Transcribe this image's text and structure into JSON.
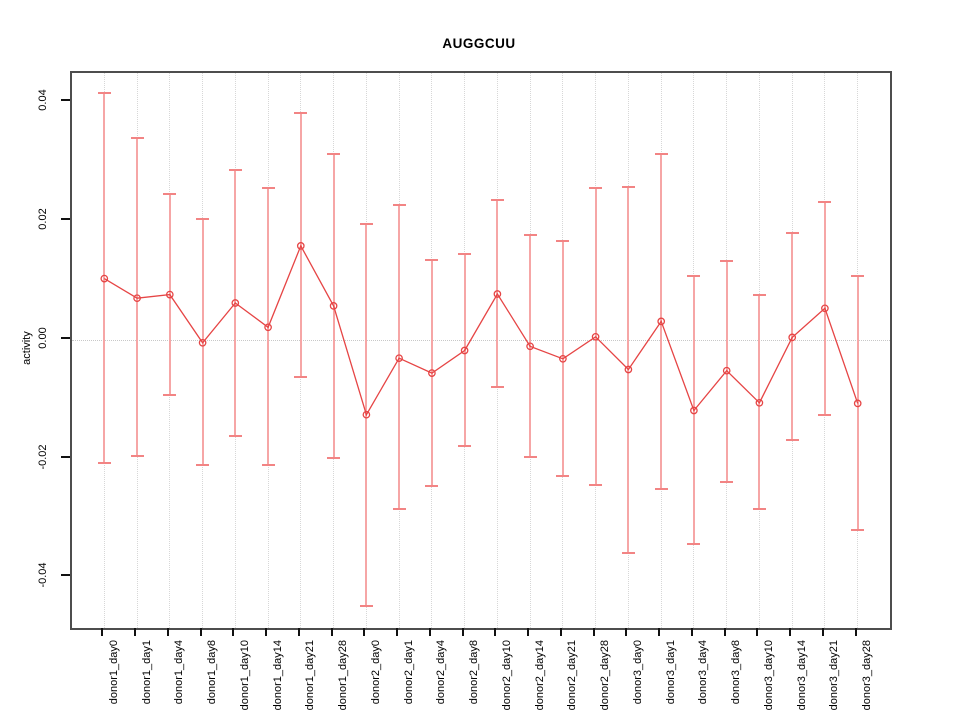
{
  "title": "AUGGCUU",
  "chart_data": {
    "type": "scatter",
    "title": "AUGGCUU",
    "xlabel": "",
    "ylabel": "activity",
    "legend": "none",
    "grid": "vertical dotted gridlines at each category; dotted horizontal line at y=0",
    "point_style": "open-circle with connecting line segments and error bars",
    "categories": [
      "donor1_day0",
      "donor1_day1",
      "donor1_day4",
      "donor1_day8",
      "donor1_day10",
      "donor1_day14",
      "donor1_day21",
      "donor1_day28",
      "donor2_day0",
      "donor2_day1",
      "donor2_day4",
      "donor2_day8",
      "donor2_day10",
      "donor2_day14",
      "donor2_day21",
      "donor2_day28",
      "donor3_day0",
      "donor3_day1",
      "donor3_day4",
      "donor3_day8",
      "donor3_day10",
      "donor3_day14",
      "donor3_day21",
      "donor3_day28"
    ],
    "series": [
      {
        "name": "activity",
        "values": [
          0.0103,
          0.007,
          0.0076,
          -0.0005,
          0.0062,
          0.0021,
          0.0158,
          0.0057,
          -0.0126,
          -0.0031,
          -0.0056,
          -0.0018,
          0.0077,
          -0.0011,
          -0.0032,
          0.0005,
          -0.005,
          0.0031,
          -0.0119,
          -0.0052,
          -0.0106,
          0.0004,
          0.0053,
          -0.0107
        ],
        "error_high": [
          0.0415,
          0.0339,
          0.0246,
          0.0203,
          0.0285,
          0.0255,
          0.0381,
          0.0313,
          0.0195,
          0.0227,
          0.0134,
          0.0144,
          0.0236,
          0.0177,
          0.0166,
          0.0256,
          0.0257,
          0.0312,
          0.0107,
          0.0133,
          0.0076,
          0.018,
          0.0232,
          0.0108
        ],
        "error_low": [
          -0.0208,
          -0.0196,
          -0.0093,
          -0.0211,
          -0.0162,
          -0.021,
          -0.0062,
          -0.0199,
          -0.0448,
          -0.0285,
          -0.0246,
          -0.0178,
          -0.008,
          -0.0197,
          -0.0229,
          -0.0244,
          -0.0359,
          -0.0251,
          -0.0344,
          -0.024,
          -0.0285,
          -0.0168,
          -0.0126,
          -0.032
        ]
      }
    ],
    "ylim": [
      -0.0485,
      0.0449
    ],
    "yticks": [
      -0.04,
      -0.02,
      0.0,
      0.02,
      0.04
    ],
    "ytick_labels": [
      "-0.04",
      "-0.02",
      "0.00",
      "0.02",
      "0.04"
    ],
    "colors": {
      "point": "#e64545",
      "line": "#e64545",
      "error_stem": "#f6a6a6",
      "error_cap": "#f28484",
      "gridline": "#d7d7d7",
      "zero_line": "#c8c8c8",
      "border": "#4d4d4d",
      "text": "#000000",
      "background": "#ffffff"
    }
  }
}
